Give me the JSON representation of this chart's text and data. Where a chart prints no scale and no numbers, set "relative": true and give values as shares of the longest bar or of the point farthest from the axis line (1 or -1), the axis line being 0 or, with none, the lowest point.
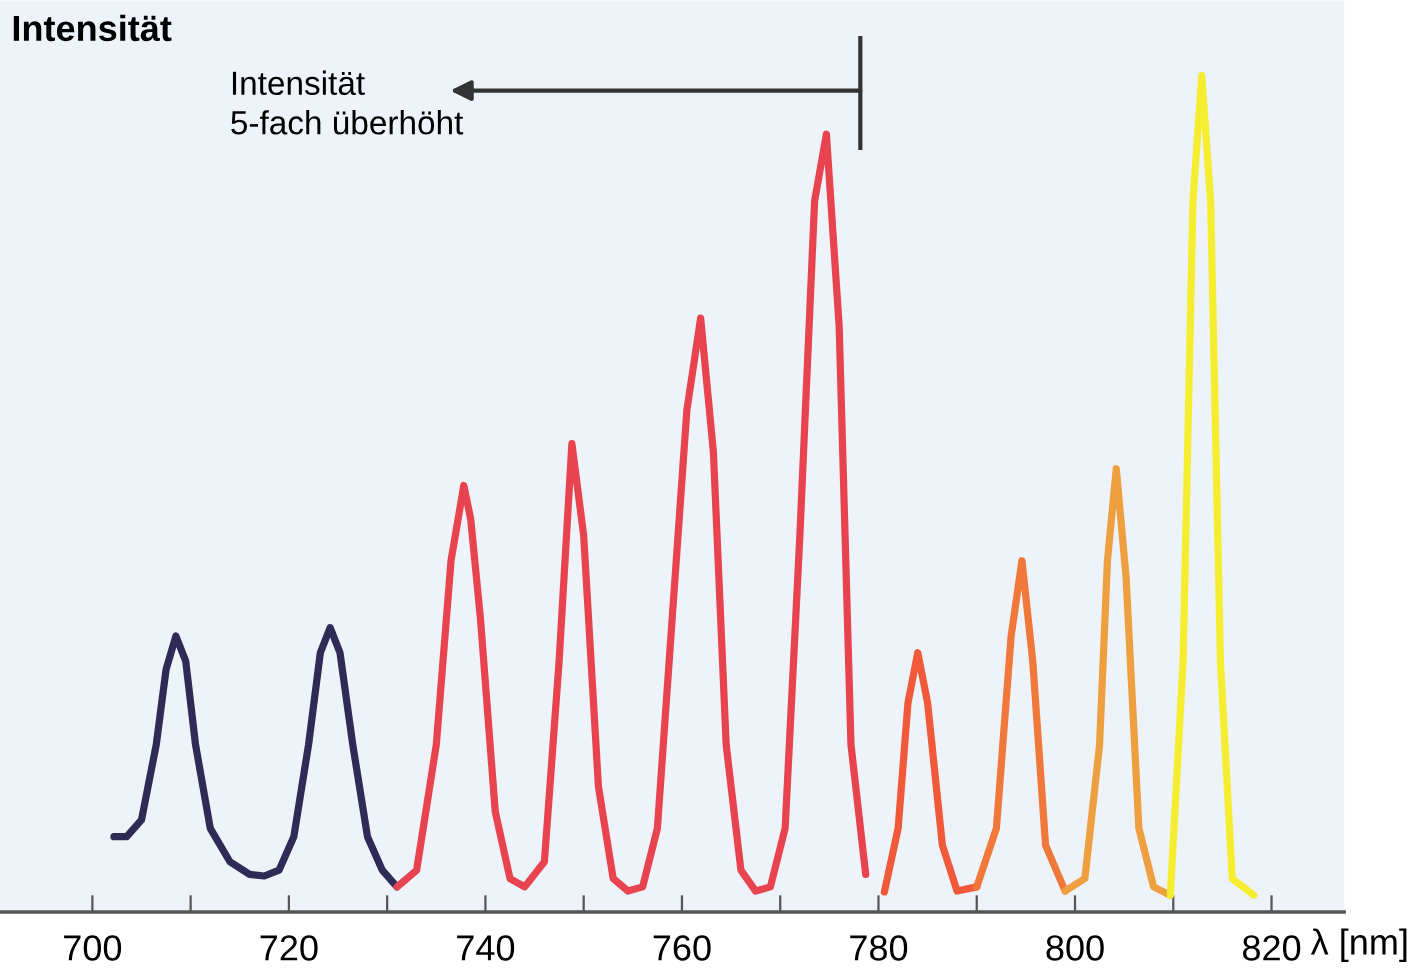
{
  "chart_data": {
    "type": "line",
    "relative": true,
    "ylabel": "Intensität",
    "xlabel": "λ [nm]",
    "xlim": [
      690.6,
      827.4
    ],
    "xticks": [
      700,
      {
        "value": 710,
        "label": null
      },
      720,
      {
        "value": 730,
        "label": null
      },
      740,
      {
        "value": 750,
        "label": null
      },
      760,
      {
        "value": 770,
        "label": null
      },
      780,
      {
        "value": 790,
        "label": null
      },
      800,
      {
        "value": 810,
        "label": null
      },
      820
    ],
    "grid": false,
    "marker": "none",
    "line_style": "solid",
    "annotations": [
      "Intensität\n5-fach überhöht"
    ],
    "series": [
      {
        "color": "#2e2b57",
        "x": [
          702.2,
          703.5,
          705,
          706.5,
          707.5,
          708.5,
          709.5,
          710.5,
          712,
          714,
          716,
          717.5,
          719,
          720.5,
          722,
          723.2,
          724.2,
          725.2,
          726.5,
          728,
          729.5,
          731
        ],
        "values": [
          0.09,
          0.09,
          0.11,
          0.2,
          0.29,
          0.33,
          0.3,
          0.2,
          0.1,
          0.06,
          0.045,
          0.043,
          0.05,
          0.09,
          0.2,
          0.31,
          0.34,
          0.31,
          0.2,
          0.09,
          0.05,
          0.03
        ]
      },
      {
        "color": "#e84450",
        "x": [
          731,
          733,
          735,
          736.5,
          737.8,
          738.5,
          739.5,
          741,
          742.5,
          744,
          746,
          747.5,
          748.8,
          750,
          751.5,
          753,
          754.5,
          756,
          757.5,
          759,
          760.5,
          761.9,
          763.2,
          764.5,
          766,
          767.5,
          769,
          770.5,
          772,
          773.5,
          774.7,
          776,
          777.2,
          778.7
        ],
        "values": [
          0.03,
          0.05,
          0.2,
          0.42,
          0.51,
          0.47,
          0.35,
          0.12,
          0.04,
          0.03,
          0.06,
          0.3,
          0.56,
          0.45,
          0.15,
          0.04,
          0.025,
          0.03,
          0.1,
          0.35,
          0.6,
          0.71,
          0.55,
          0.2,
          0.05,
          0.025,
          0.03,
          0.1,
          0.45,
          0.85,
          0.93,
          0.7,
          0.2,
          0.045
        ]
      },
      {
        "color": "#f05a3a",
        "x": [
          780.6,
          782,
          783,
          784,
          785,
          786.5,
          788,
          790
        ],
        "values": [
          0.024,
          0.1,
          0.25,
          0.31,
          0.25,
          0.08,
          0.025,
          0.03
        ]
      },
      {
        "color": "#f0783a",
        "x": [
          790,
          792,
          793.5,
          794.6,
          795.7,
          797,
          799
        ],
        "values": [
          0.03,
          0.1,
          0.33,
          0.42,
          0.3,
          0.08,
          0.025
        ]
      },
      {
        "color": "#eea040",
        "x": [
          799,
          801,
          802.5,
          803.3,
          804.2,
          805.2,
          806.5,
          808,
          809.7
        ],
        "values": [
          0.025,
          0.04,
          0.2,
          0.42,
          0.53,
          0.4,
          0.1,
          0.03,
          0.02
        ]
      },
      {
        "color": "#f5ee30",
        "x": [
          809.7,
          811,
          812,
          812.9,
          813.8,
          814.8,
          816,
          818.2
        ],
        "values": [
          0.02,
          0.3,
          0.85,
          1.0,
          0.85,
          0.3,
          0.04,
          0.02
        ]
      }
    ]
  }
}
